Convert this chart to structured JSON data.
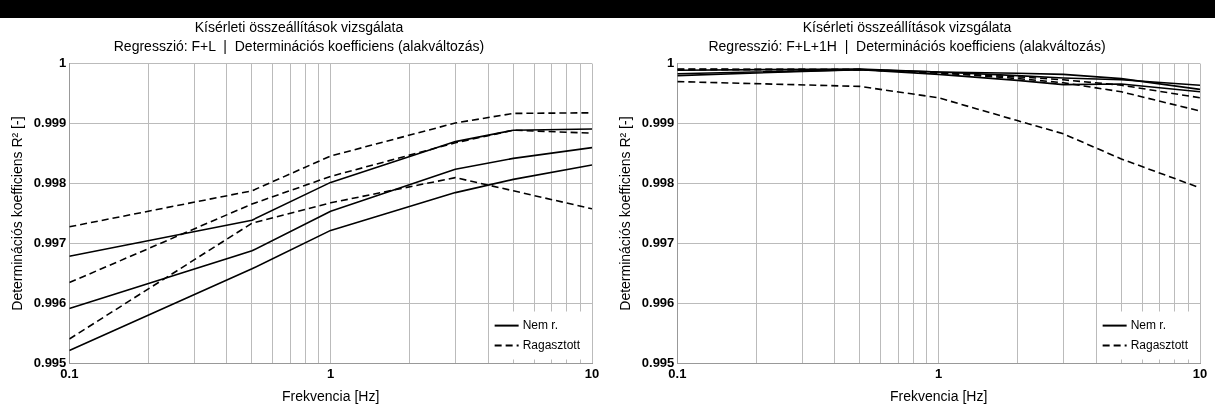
{
  "chart_data": [
    {
      "type": "line",
      "title": "Kísérleti összeállítások vizsgálata",
      "subtitle": "Regresszió: F+L  |  Determinációs koefficiens (alakváltozás)",
      "xlabel": "Frekvencia [Hz]",
      "ylabel": "Determinációs koefficiens R² [-]",
      "x": [
        0.1,
        0.5,
        1,
        3,
        5,
        10
      ],
      "series": [
        {
          "name": "Nem r.",
          "color": "#000000",
          "line_style": "solid",
          "values": [
            0.99592,
            0.99688,
            0.99754,
            0.99824,
            0.99842,
            0.9986
          ]
        },
        {
          "color": "#000000",
          "line_style": "solid",
          "values": [
            0.99679,
            0.99739,
            0.99802,
            0.9987,
            0.99889,
            0.99891
          ]
        },
        {
          "color": "#000000",
          "line_style": "solid",
          "values": [
            0.99522,
            0.99658,
            0.99722,
            0.99785,
            0.99807,
            0.99831
          ]
        },
        {
          "name": "Ragasztott",
          "color": "#000000",
          "line_style": "dashed",
          "values": [
            0.99635,
            0.99766,
            0.99812,
            0.99868,
            0.99889,
            0.99884
          ]
        },
        {
          "color": "#000000",
          "line_style": "dashed",
          "values": [
            0.99728,
            0.99788,
            0.99846,
            0.99901,
            0.99917,
            0.99918
          ]
        },
        {
          "color": "#000000",
          "line_style": "dashed",
          "values": [
            0.99541,
            0.99734,
            0.99768,
            0.9981,
            0.99788,
            0.99758
          ]
        }
      ],
      "log": "x",
      "xlim": [
        0.1,
        10
      ],
      "xticks": [
        0.1,
        {
          "value": 0.2,
          "label": null
        },
        {
          "value": 0.3,
          "label": null
        },
        {
          "value": 0.4,
          "label": null
        },
        {
          "value": 0.5,
          "label": null
        },
        {
          "value": 0.6,
          "label": null
        },
        {
          "value": 0.7,
          "label": null
        },
        {
          "value": 0.8,
          "label": null
        },
        {
          "value": 0.9,
          "label": null
        },
        1,
        {
          "value": 2,
          "label": null
        },
        {
          "value": 3,
          "label": null
        },
        {
          "value": 4,
          "label": null
        },
        {
          "value": 5,
          "label": null
        },
        {
          "value": 6,
          "label": null
        },
        {
          "value": 7,
          "label": null
        },
        {
          "value": 8,
          "label": null
        },
        {
          "value": 9,
          "label": null
        },
        10
      ],
      "ylim": [
        0.995,
        1
      ],
      "yticks": [
        0.995,
        0.996,
        0.997,
        0.998,
        0.999,
        1
      ],
      "grid": true,
      "legend": "bottom right",
      "marker": "none"
    },
    {
      "type": "line",
      "title": "Kísérleti összeállítások vizsgálata",
      "subtitle": "Regresszió: F+L+1H  |  Determinációs koefficiens (alakváltozás)",
      "xlabel": "Frekvencia [Hz]",
      "ylabel": "Determinációs koefficiens R² [-]",
      "x": [
        0.1,
        0.5,
        1,
        2,
        3,
        5,
        10
      ],
      "series": [
        {
          "name": "Nem r.",
          "color": "#000000",
          "line_style": "solid",
          "values": [
            0.99989,
            0.99991,
            0.99986,
            0.99984,
            0.99982,
            0.99975,
            0.99957
          ]
        },
        {
          "color": "#000000",
          "line_style": "solid",
          "values": [
            0.99983,
            0.9999,
            0.99986,
            0.9998,
            0.99976,
            0.99973,
            0.99964
          ]
        },
        {
          "color": "#000000",
          "line_style": "solid",
          "values": [
            0.9998,
            0.9999,
            0.99982,
            0.99972,
            0.99965,
            0.99966,
            0.99953
          ]
        },
        {
          "name": "Ragasztott",
          "color": "#000000",
          "line_style": "dashed",
          "values": [
            0.99991,
            0.9999,
            0.99985,
            0.99975,
            0.99968,
            0.99953,
            0.99921
          ]
        },
        {
          "color": "#000000",
          "line_style": "dashed",
          "values": [
            0.9999,
            0.9999,
            0.99984,
            0.99978,
            0.99973,
            0.99964,
            0.99943
          ]
        },
        {
          "color": "#000000",
          "line_style": "dashed",
          "values": [
            0.9997,
            0.99962,
            0.99943,
            0.99905,
            0.99883,
            0.99841,
            0.99793
          ]
        }
      ],
      "log": "x",
      "xlim": [
        0.1,
        10
      ],
      "xticks": [
        0.1,
        {
          "value": 0.2,
          "label": null
        },
        {
          "value": 0.3,
          "label": null
        },
        {
          "value": 0.4,
          "label": null
        },
        {
          "value": 0.5,
          "label": null
        },
        {
          "value": 0.6,
          "label": null
        },
        {
          "value": 0.7,
          "label": null
        },
        {
          "value": 0.8,
          "label": null
        },
        {
          "value": 0.9,
          "label": null
        },
        1,
        {
          "value": 2,
          "label": null
        },
        {
          "value": 3,
          "label": null
        },
        {
          "value": 4,
          "label": null
        },
        {
          "value": 5,
          "label": null
        },
        {
          "value": 6,
          "label": null
        },
        {
          "value": 7,
          "label": null
        },
        {
          "value": 8,
          "label": null
        },
        {
          "value": 9,
          "label": null
        },
        10
      ],
      "ylim": [
        0.995,
        1
      ],
      "yticks": [
        0.995,
        0.996,
        0.997,
        0.998,
        0.999,
        1
      ],
      "grid": true,
      "legend": "bottom right",
      "marker": "none"
    }
  ]
}
